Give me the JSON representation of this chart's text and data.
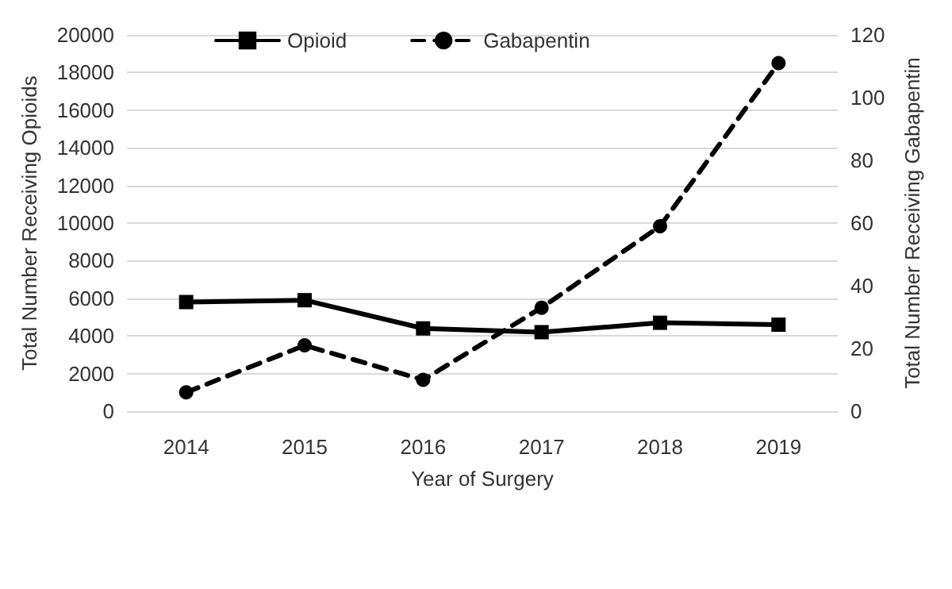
{
  "chart_data": {
    "type": "line",
    "xlabel": "Year of Surgery",
    "ylabel": "Total Number Receiving Opioids",
    "y2label": "Total Number Receiving Gabapentin",
    "categories": [
      "2014",
      "2015",
      "2016",
      "2017",
      "2018",
      "2019"
    ],
    "series": [
      {
        "name": "Opioid",
        "color": "#000000",
        "values": [
          5800,
          5900,
          4400,
          4200,
          4700,
          4600
        ],
        "marker": "square",
        "line_style": "solid"
      },
      {
        "name": "Gabapentin",
        "color": "#000000",
        "values": [
          6,
          21,
          10,
          33,
          59,
          111
        ],
        "axis": "y2",
        "marker": "circle",
        "line_style": "dashed"
      }
    ],
    "ylim": [
      0,
      20000
    ],
    "yticks": [
      0,
      2000,
      4000,
      6000,
      8000,
      10000,
      12000,
      14000,
      16000,
      18000,
      20000
    ],
    "y2lim": [
      0,
      120
    ],
    "y2ticks": [
      0,
      20,
      40,
      60,
      80,
      100,
      120
    ],
    "grid": "y",
    "legend": "top left"
  }
}
